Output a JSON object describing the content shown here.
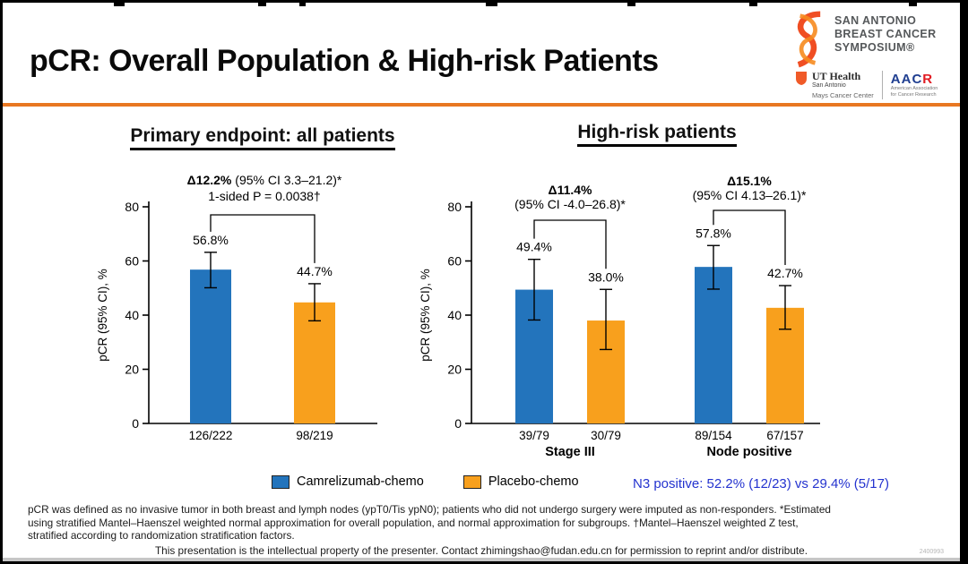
{
  "slide": {
    "title": "pCR: Overall Population & High-risk Patients",
    "n3_note": "N3 positive: 52.2% (12/23) vs 29.4% (5/17)",
    "footnote_lines": [
      "pCR was defined as no invasive tumor in both breast and lymph nodes (ypT0/Tis ypN0); patients who did not undergo surgery were imputed as non-responders. *Estimated",
      "using stratified Mantel–Haenszel weighted normal approximation for overall population, and normal approximation for subgroups. †Mantel–Haenszel weighted Z test,",
      "stratified according to randomization stratification factors."
    ],
    "ip_line": "This presentation is the intellectual property of the presenter. Contact zhimingshao@fudan.edu.cn for permission to reprint and/or distribute.",
    "corner_code": "2400993"
  },
  "logos": {
    "sabcs_lines": [
      "SAN ANTONIO",
      "BREAST CANCER",
      "SYMPOSIUM®"
    ],
    "uthealth_name": "UT Health",
    "uthealth_city": "San Antonio",
    "uthealth_center": "Mays Cancer Center",
    "aacr_letters_blue": "AAC",
    "aacr_letter_red": "R",
    "aacr_sub1": "American Association",
    "aacr_sub2": "for Cancer Research"
  },
  "legend": [
    {
      "label": "Camrelizumab-chemo",
      "color": "#2374BC"
    },
    {
      "label": "Placebo-chemo",
      "color": "#F8A01D"
    }
  ],
  "chart_data": [
    {
      "type": "bar",
      "title": "Primary endpoint: all patients",
      "ylabel": "pCR (95% CI), %",
      "ylim": [
        0,
        80
      ],
      "yticks": [
        0,
        20,
        40,
        60,
        80
      ],
      "bars": [
        {
          "series": "Camrelizumab-chemo",
          "label": "56.8%",
          "value": 56.8,
          "ci_low": 50.1,
          "ci_high": 63.2,
          "n": "126/222"
        },
        {
          "series": "Placebo-chemo",
          "label": "44.7%",
          "value": 44.7,
          "ci_low": 37.9,
          "ci_high": 51.6,
          "n": "98/219"
        }
      ],
      "annotation_lines": [
        [
          {
            "text": "Δ12.2%",
            "bold": true
          },
          {
            "text": " (95% CI 3.3–21.2)*",
            "bold": false
          }
        ],
        [
          {
            "text": "1-sided P = 0.0038†",
            "bold": false
          }
        ]
      ]
    },
    {
      "type": "bar",
      "title": "High-risk patients",
      "ylabel": "pCR (95% CI), %",
      "ylim": [
        0,
        80
      ],
      "yticks": [
        0,
        20,
        40,
        60,
        80
      ],
      "groups": [
        {
          "label": "Stage III",
          "bars": [
            {
              "series": "Camrelizumab-chemo",
              "label": "49.4%",
              "value": 49.4,
              "ci_low": 38.2,
              "ci_high": 60.6,
              "n": "39/79"
            },
            {
              "series": "Placebo-chemo",
              "label": "38.0%",
              "value": 38.0,
              "ci_low": 27.3,
              "ci_high": 49.5,
              "n": "30/79"
            }
          ],
          "annotation_lines": [
            [
              {
                "text": "Δ11.4%",
                "bold": true
              }
            ],
            [
              {
                "text": "(95% CI -4.0–26.8)*",
                "bold": false
              }
            ]
          ]
        },
        {
          "label": "Node positive",
          "bars": [
            {
              "series": "Camrelizumab-chemo",
              "label": "57.8%",
              "value": 57.8,
              "ci_low": 49.6,
              "ci_high": 65.7,
              "n": "89/154"
            },
            {
              "series": "Placebo-chemo",
              "label": "42.7%",
              "value": 42.7,
              "ci_low": 34.8,
              "ci_high": 50.9,
              "n": "67/157"
            }
          ],
          "annotation_lines": [
            [
              {
                "text": "Δ15.1%",
                "bold": true
              }
            ],
            [
              {
                "text": "(95% CI 4.13–26.1)*",
                "bold": false
              }
            ]
          ]
        }
      ]
    }
  ]
}
